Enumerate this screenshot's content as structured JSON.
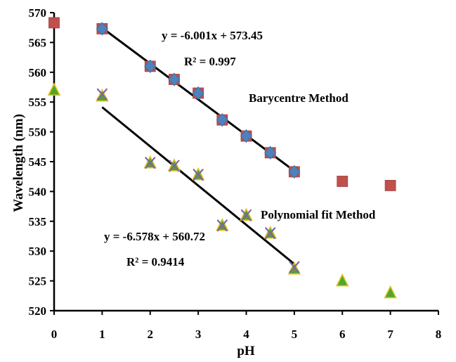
{
  "chart_data": {
    "type": "scatter",
    "xlabel": "pH",
    "ylabel": "Wavelength (nm)",
    "xlim": [
      0,
      8
    ],
    "ylim": [
      520,
      570
    ],
    "x_ticks": [
      "0",
      "1",
      "2",
      "3",
      "4",
      "5",
      "6",
      "7",
      "8"
    ],
    "y_ticks": [
      "520",
      "525",
      "530",
      "535",
      "540",
      "545",
      "550",
      "555",
      "560",
      "565",
      "570"
    ],
    "grid": false,
    "series": [
      {
        "marker": "square",
        "color": "#c0504d",
        "points": [
          [
            0,
            568.3
          ],
          [
            1,
            567.3
          ],
          [
            2,
            561.0
          ],
          [
            2.5,
            558.8
          ],
          [
            3,
            556.5
          ],
          [
            3.5,
            552.0
          ],
          [
            4,
            549.3
          ],
          [
            4.5,
            546.5
          ],
          [
            5,
            543.3
          ],
          [
            6,
            541.7
          ],
          [
            7,
            541.0
          ]
        ]
      },
      {
        "marker": "diamond",
        "color": "#4f81bd",
        "points": [
          [
            1,
            567.3
          ],
          [
            2,
            561.0
          ],
          [
            2.5,
            558.8
          ],
          [
            3,
            556.5
          ],
          [
            3.5,
            552.0
          ],
          [
            4,
            549.3
          ],
          [
            4.5,
            546.5
          ],
          [
            5,
            543.3
          ]
        ]
      },
      {
        "marker": "triangle",
        "color": "#4ea72e",
        "points": [
          [
            0,
            557.0
          ],
          [
            1,
            556.0
          ],
          [
            2,
            544.8
          ],
          [
            2.5,
            544.3
          ],
          [
            3,
            542.8
          ],
          [
            3.5,
            534.3
          ],
          [
            4,
            536.0
          ],
          [
            4.5,
            533.0
          ],
          [
            5,
            527.0
          ],
          [
            6,
            525.0
          ],
          [
            7,
            523.0
          ]
        ]
      },
      {
        "marker": "x",
        "color": "#8064a2",
        "points": [
          [
            1,
            556.3
          ],
          [
            2,
            544.8
          ],
          [
            2.5,
            544.3
          ],
          [
            3,
            542.8
          ],
          [
            3.5,
            534.3
          ],
          [
            4,
            536.0
          ],
          [
            4.5,
            533.0
          ],
          [
            5,
            527.3
          ]
        ]
      }
    ],
    "trendlines": [
      {
        "slope": -6.001,
        "intercept": 573.45,
        "x_range": [
          1,
          5
        ],
        "color": "#000000"
      },
      {
        "slope": -6.578,
        "intercept": 560.72,
        "x_range": [
          1,
          5
        ],
        "color": "#000000"
      }
    ],
    "annotations": [
      {
        "id": "eq1",
        "text": "y = -6.001x + 573.45"
      },
      {
        "id": "r1",
        "text": "R² = 0.997"
      },
      {
        "id": "label1",
        "text": "Barycentre Method"
      },
      {
        "id": "label2",
        "text": "Polynomial fit Method"
      },
      {
        "id": "eq2",
        "text": "y = -6.578x + 560.72"
      },
      {
        "id": "r2",
        "text": "R² = 0.9414"
      }
    ]
  }
}
